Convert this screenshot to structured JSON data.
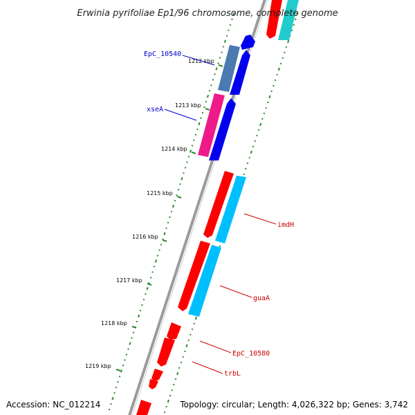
{
  "title": "Erwinia pyrifoliae Ep1/96 chromosome, complete genome",
  "footer": {
    "accession": "Accession: NC_012214",
    "summary": "Topology: circular; Length: 4,026,322 bp; Genes: 3,742"
  },
  "colors": {
    "backbone": "#888888",
    "gc_skew": "#2a8a2a",
    "reverse_gene": "#ff0000",
    "forward_gene": "#0000ee",
    "forward_cds": "#00bfff",
    "misc_pink": "#ee1a8a",
    "misc_steel": "#4a7ab0",
    "teal": "#22cccc",
    "label_forward": "#0000cc",
    "label_reverse": "#cc0000"
  },
  "scale": {
    "ticks": [
      "1212 kbp",
      "1213 kbp",
      "1214 kbp",
      "1215 kbp",
      "1216 kbp",
      "1217 kbp",
      "1218 kbp",
      "1219 kbp"
    ]
  },
  "genes": [
    {
      "name": "EpC_10540",
      "strand": "forward"
    },
    {
      "name": "xseA",
      "strand": "forward"
    },
    {
      "name": "imdH",
      "strand": "reverse"
    },
    {
      "name": "guaA",
      "strand": "reverse"
    },
    {
      "name": "EpC_10580",
      "strand": "reverse"
    },
    {
      "name": "trbL",
      "strand": "reverse"
    }
  ]
}
